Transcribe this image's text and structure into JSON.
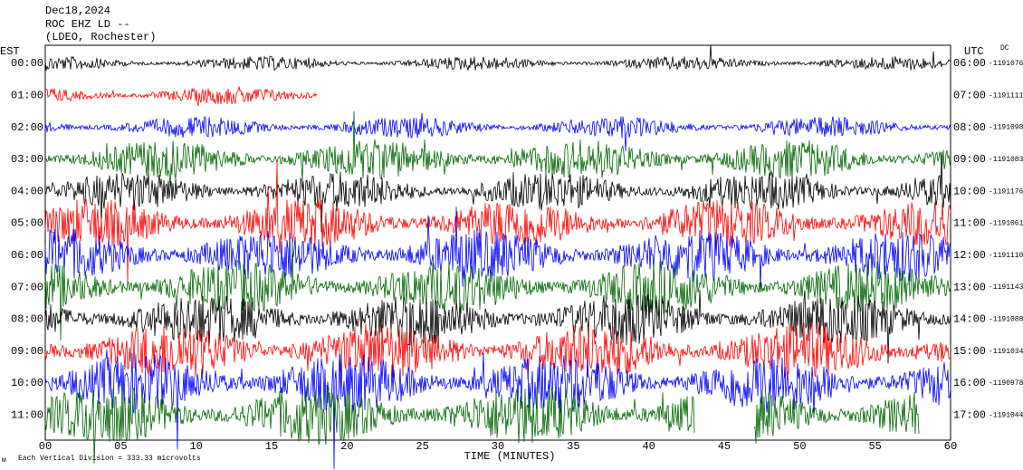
{
  "header": {
    "date": "Dec18,2024",
    "station": "ROC EHZ LD --",
    "network": "(LDEO, Rochester)"
  },
  "left_axis": {
    "title": "EST",
    "labels": [
      "00:00",
      "01:00",
      "02:00",
      "03:00",
      "04:00",
      "05:00",
      "06:00",
      "07:00",
      "08:00",
      "09:00",
      "10:00",
      "11:00"
    ]
  },
  "right_axis": {
    "title": "UTC",
    "dc_title": "DC",
    "labels": [
      "06:00",
      "07:00",
      "08:00",
      "09:00",
      "10:00",
      "11:00",
      "12:00",
      "13:00",
      "14:00",
      "15:00",
      "16:00",
      "17:00"
    ],
    "dc_values": [
      "-1191076",
      "-1191111",
      "-1191098",
      "-1191083",
      "-1191176",
      "-1191061",
      "-1191110",
      "-1191143",
      "-1191088",
      "-1191034",
      "-1190978",
      "-1191044"
    ]
  },
  "x_axis": {
    "title": "TIME (MINUTES)",
    "labels": [
      "00",
      "05",
      "10",
      "15",
      "20",
      "25",
      "30",
      "35",
      "40",
      "45",
      "50",
      "55",
      "60"
    ]
  },
  "footer": {
    "scale_note": "Each Vertical Division =  333.33 microvolts",
    "mark": "м"
  }
}
